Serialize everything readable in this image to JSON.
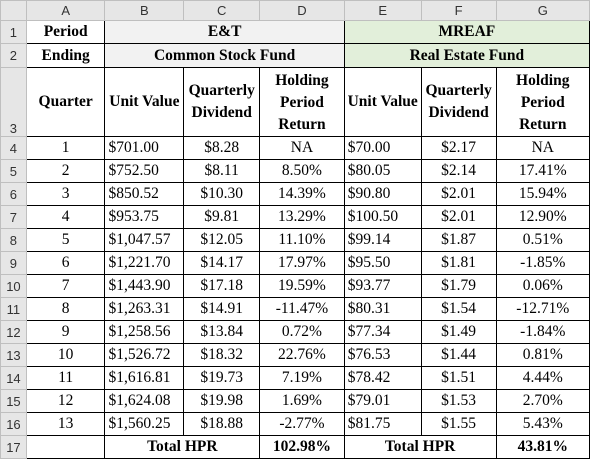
{
  "columns": [
    "A",
    "B",
    "C",
    "D",
    "E",
    "F",
    "G"
  ],
  "rows": [
    "1",
    "2",
    "3",
    "4",
    "5",
    "6",
    "7",
    "8",
    "9",
    "10",
    "11",
    "12",
    "13",
    "14",
    "15",
    "16",
    "17"
  ],
  "headers": {
    "period_ending": "Period Ending",
    "period": "Period",
    "ending": "Ending",
    "fund1_name": "E&T",
    "fund1_type": "Common Stock Fund",
    "fund2_name": "MREAF",
    "fund2_type": "Real Estate Fund",
    "quarter": "Quarter",
    "unit_value_b": "Unit Value",
    "quarterly_dividend": "Quarterly Dividend",
    "holding_period_return": "Holding Period Return",
    "unit_value_e": "Unit Value"
  },
  "data_rows": [
    {
      "q": "1",
      "b": "$701.00",
      "c": "$8.28",
      "d": "NA",
      "e": "$70.00",
      "f": "$2.17",
      "g": "NA"
    },
    {
      "q": "2",
      "b": "$752.50",
      "c": "$8.11",
      "d": "8.50%",
      "e": "$80.05",
      "f": "$2.14",
      "g": "17.41%"
    },
    {
      "q": "3",
      "b": "$850.52",
      "c": "$10.30",
      "d": "14.39%",
      "e": "$90.80",
      "f": "$2.01",
      "g": "15.94%"
    },
    {
      "q": "4",
      "b": "$953.75",
      "c": "$9.81",
      "d": "13.29%",
      "e": "$100.50",
      "f": "$2.01",
      "g": "12.90%"
    },
    {
      "q": "5",
      "b": "$1,047.57",
      "c": "$12.05",
      "d": "11.10%",
      "e": "$99.14",
      "f": "$1.87",
      "g": "0.51%"
    },
    {
      "q": "6",
      "b": "$1,221.70",
      "c": "$14.17",
      "d": "17.97%",
      "e": "$95.50",
      "f": "$1.81",
      "g": "-1.85%"
    },
    {
      "q": "7",
      "b": "$1,443.90",
      "c": "$17.18",
      "d": "19.59%",
      "e": "$93.77",
      "f": "$1.79",
      "g": "0.06%"
    },
    {
      "q": "8",
      "b": "$1,263.31",
      "c": "$14.91",
      "d": "-11.47%",
      "e": "$80.31",
      "f": "$1.54",
      "g": "-12.71%"
    },
    {
      "q": "9",
      "b": "$1,258.56",
      "c": "$13.84",
      "d": "0.72%",
      "e": "$77.34",
      "f": "$1.49",
      "g": "-1.84%"
    },
    {
      "q": "10",
      "b": "$1,526.72",
      "c": "$18.32",
      "d": "22.76%",
      "e": "$76.53",
      "f": "$1.44",
      "g": "0.81%"
    },
    {
      "q": "11",
      "b": "$1,616.81",
      "c": "$19.73",
      "d": "7.19%",
      "e": "$78.42",
      "f": "$1.51",
      "g": "4.44%"
    },
    {
      "q": "12",
      "b": "$1,624.08",
      "c": "$19.98",
      "d": "1.69%",
      "e": "$79.01",
      "f": "$1.53",
      "g": "2.70%"
    },
    {
      "q": "13",
      "b": "$1,560.25",
      "c": "$18.88",
      "d": "-2.77%",
      "e": "$81.75",
      "f": "$1.55",
      "g": "5.43%"
    }
  ],
  "totals": {
    "label1": "Total HPR",
    "value1": "102.98%",
    "label2": "Total HPR",
    "value2": "43.81%"
  },
  "colors": {
    "green_fill": "#e2efda",
    "grey_fill": "#f2f2f2",
    "header_fill": "#e6e6e6"
  }
}
